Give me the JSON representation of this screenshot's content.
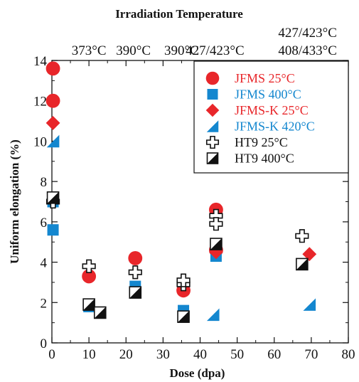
{
  "chart_data": {
    "type": "scatter",
    "title": "",
    "top_axis_label": "Irradiation Temperature",
    "top_annotations": [
      {
        "x": 10,
        "lines": [
          "373°C"
        ]
      },
      {
        "x": 22,
        "lines": [
          "390°C"
        ]
      },
      {
        "x": 35,
        "lines": [
          "390°C"
        ]
      },
      {
        "x": 44,
        "lines": [
          "427/423°C"
        ]
      },
      {
        "x": 69,
        "lines": [
          "427/423°C",
          "408/433°C"
        ]
      }
    ],
    "xlabel": "Dose (dpa)",
    "ylabel": "Uniform elongation (%)",
    "xlim": [
      0,
      80
    ],
    "ylim": [
      0,
      14
    ],
    "xticks": [
      0,
      10,
      20,
      30,
      40,
      50,
      60,
      70,
      80
    ],
    "yticks": [
      0,
      2,
      4,
      6,
      8,
      10,
      12,
      14
    ],
    "grid": false,
    "legend_position": "top-right",
    "series": [
      {
        "name": "JFMS 25°C",
        "marker": "circle",
        "color": "#e8262a",
        "points": [
          [
            0.3,
            13.6
          ],
          [
            0.3,
            12.0
          ],
          [
            10,
            3.3
          ],
          [
            22.5,
            4.2
          ],
          [
            35.5,
            2.6
          ],
          [
            44.3,
            6.6
          ],
          [
            44.3,
            4.6
          ]
        ]
      },
      {
        "name": "JFMS 400°C",
        "marker": "square",
        "color": "#1487cf",
        "points": [
          [
            0.3,
            5.6
          ],
          [
            0.3,
            7.0
          ],
          [
            10,
            1.8
          ],
          [
            22.5,
            2.8
          ],
          [
            35.5,
            1.6
          ],
          [
            44.3,
            4.3
          ]
        ]
      },
      {
        "name": "JFMS-K 25°C",
        "marker": "diamond",
        "color": "#e8262a",
        "points": [
          [
            0.3,
            10.9
          ],
          [
            44.3,
            4.5
          ],
          [
            69.5,
            4.4
          ]
        ]
      },
      {
        "name": "JFMS-K 420°C",
        "marker": "triangle",
        "color": "#1487cf",
        "points": [
          [
            0.3,
            10.0
          ],
          [
            43.5,
            1.4
          ],
          [
            69.5,
            1.9
          ]
        ]
      },
      {
        "name": "HT9 25°C",
        "marker": "cross",
        "color": "#111111",
        "points": [
          [
            0.3,
            7.0
          ],
          [
            10,
            3.8
          ],
          [
            22.5,
            3.5
          ],
          [
            35.5,
            2.9
          ],
          [
            35.5,
            3.1
          ],
          [
            44.3,
            6.3
          ],
          [
            44.3,
            5.9
          ],
          [
            67.5,
            5.3
          ]
        ]
      },
      {
        "name": "HT9 400°C",
        "marker": "halfsquare",
        "color": "#111111",
        "points": [
          [
            0.3,
            7.2
          ],
          [
            10,
            1.9
          ],
          [
            13,
            1.5
          ],
          [
            22.5,
            2.5
          ],
          [
            35.5,
            1.3
          ],
          [
            44.3,
            4.9
          ],
          [
            67.5,
            3.9
          ]
        ]
      }
    ]
  }
}
